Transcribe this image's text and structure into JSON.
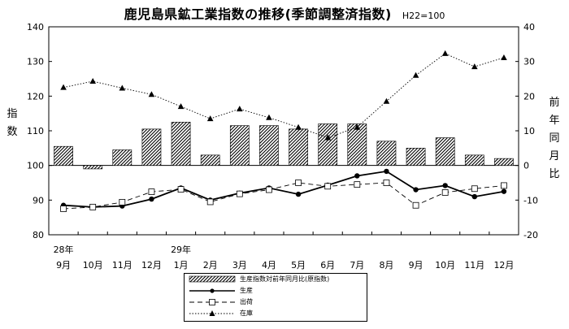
{
  "chart_data": {
    "type": "bar+line",
    "title": "鹿児島県鉱工業指数の推移(季節調整済指数)",
    "note": "H22=100",
    "y_left_label": "指数",
    "y_right_label": "前年同月比",
    "y_left_range": [
      80,
      140
    ],
    "y_left_ticks": [
      "140",
      "130",
      "120",
      "110",
      "100",
      "90",
      "80"
    ],
    "y_right_range": [
      -20,
      40
    ],
    "y_right_ticks": [
      "40",
      "30",
      "20",
      "10",
      "0",
      "-10",
      "-20"
    ],
    "x_year_labels": [
      {
        "index": 0,
        "label": "28年"
      },
      {
        "index": 4,
        "label": "29年"
      }
    ],
    "categories": [
      "9月",
      "10月",
      "11月",
      "12月",
      "1月",
      "2月",
      "3月",
      "4月",
      "5月",
      "6月",
      "7月",
      "8月",
      "9月",
      "10月",
      "11月",
      "12月"
    ],
    "series": [
      {
        "name": "生産指数対前年同月比(原指数)",
        "type": "bar",
        "axis": "right",
        "values": [
          5.5,
          -1,
          4.5,
          10.5,
          12.5,
          3,
          11.5,
          11.5,
          10.5,
          12,
          12,
          7,
          5,
          8,
          3,
          2
        ]
      },
      {
        "name": "生産",
        "type": "line",
        "axis": "left",
        "values": [
          88.5,
          88.0,
          88.3,
          90.3,
          93.5,
          90.0,
          92.0,
          93.5,
          91.7,
          94.3,
          97.0,
          98.3,
          93.0,
          94.2,
          91.0,
          92.5
        ]
      },
      {
        "name": "出荷",
        "type": "line",
        "axis": "left",
        "values": [
          87.5,
          88.0,
          89.4,
          92.4,
          93.1,
          89.5,
          91.8,
          93.0,
          95.0,
          94.0,
          94.5,
          95.0,
          88.5,
          92.2,
          93.3,
          94.2
        ]
      },
      {
        "name": "在庫",
        "type": "line",
        "axis": "left",
        "values": [
          122.5,
          124.3,
          122.3,
          120.5,
          117.0,
          113.5,
          116.3,
          113.8,
          111.0,
          108.0,
          111.0,
          118.5,
          126.0,
          132.3,
          128.5,
          131.1
        ]
      }
    ]
  }
}
